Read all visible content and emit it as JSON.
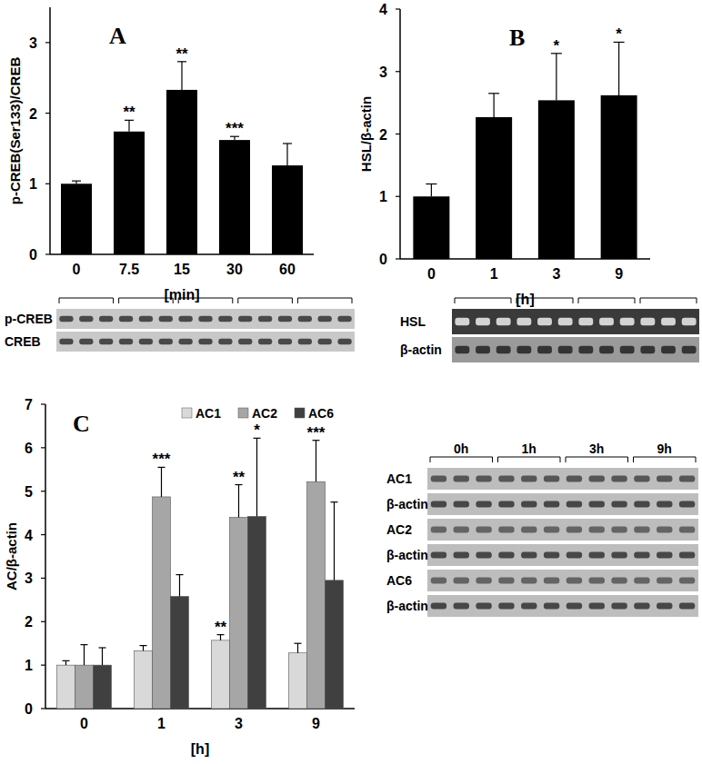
{
  "chart_data": [
    {
      "type": "bar",
      "title": "A",
      "categories": [
        "0",
        "7.5",
        "15",
        "30",
        "60"
      ],
      "values": [
        1.0,
        1.74,
        2.33,
        1.62,
        1.26
      ],
      "errors": [
        0.04,
        0.16,
        0.4,
        0.05,
        0.31
      ],
      "significance": [
        null,
        "**",
        "**",
        "***",
        null
      ],
      "color": "#000000",
      "x_label": "[min]",
      "y_label": "p-CREB(Ser133)/CREB",
      "ylim": [
        0,
        3.5
      ],
      "yticks": [
        0,
        1,
        2,
        3
      ]
    },
    {
      "type": "bar",
      "title": "B",
      "categories": [
        "0",
        "1",
        "3",
        "9"
      ],
      "values": [
        1.0,
        2.27,
        2.54,
        2.62
      ],
      "errors": [
        0.2,
        0.38,
        0.75,
        0.85
      ],
      "significance": [
        null,
        null,
        "*",
        "*"
      ],
      "color": "#000000",
      "x_label": "[h]",
      "y_label": "HSL/β-actin",
      "ylim": [
        0,
        4
      ],
      "yticks": [
        0,
        1,
        2,
        3,
        4
      ]
    },
    {
      "type": "bar",
      "title": "C",
      "categories": [
        "0",
        "1",
        "3",
        "9"
      ],
      "series": [
        {
          "name": "AC1",
          "color": "#d9d9d9",
          "values": [
            1.0,
            1.33,
            1.57,
            1.28
          ],
          "errors": [
            0.1,
            0.12,
            0.13,
            0.22
          ],
          "significance": [
            null,
            null,
            "**",
            null
          ]
        },
        {
          "name": "AC2",
          "color": "#a6a6a6",
          "values": [
            1.0,
            4.87,
            4.4,
            5.22
          ],
          "errors": [
            0.47,
            0.68,
            0.75,
            0.95
          ],
          "significance": [
            null,
            "***",
            "**",
            "***"
          ]
        },
        {
          "name": "AC6",
          "color": "#404040",
          "values": [
            1.0,
            2.58,
            4.42,
            2.95
          ],
          "errors": [
            0.4,
            0.5,
            1.8,
            1.8
          ],
          "significance": [
            null,
            null,
            "*",
            null
          ]
        }
      ],
      "legend": "top",
      "x_label": "[h]",
      "y_label": "AC/β-actin",
      "ylim": [
        0,
        7
      ],
      "yticks": [
        0,
        1,
        2,
        3,
        4,
        5,
        6,
        7
      ]
    }
  ],
  "blots": [
    {
      "rows": [
        "p-CREB",
        "CREB"
      ]
    },
    {
      "rows": [
        "HSL",
        "β-actin"
      ]
    },
    {
      "rows": [
        "AC1",
        "β-actin",
        "AC2",
        "β-actin",
        "AC6",
        "β-actin"
      ],
      "groups": [
        "0h",
        "1h",
        "3h",
        "9h"
      ]
    }
  ]
}
